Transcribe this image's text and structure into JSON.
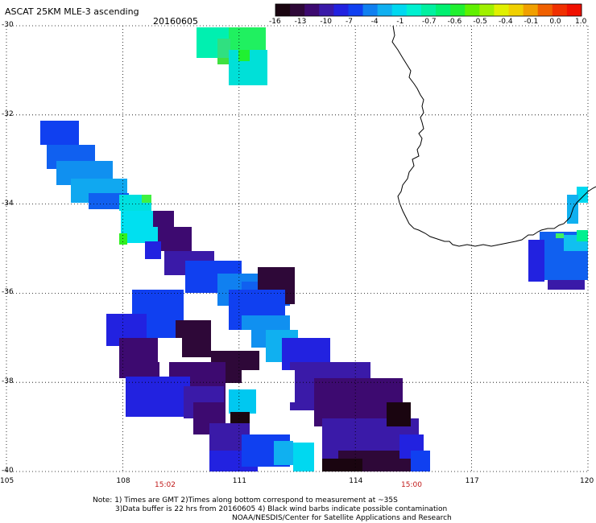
{
  "header": {
    "title": "ASCAT 25KM MLE-3 ascending",
    "date": "20160605"
  },
  "colorbar": {
    "labels": [
      "-16",
      "-13",
      "-10",
      "-7",
      "-4",
      "-1",
      "-0.7",
      "-0.6",
      "-0.5",
      "-0.4",
      "-0.1",
      "0.0",
      "1.0"
    ],
    "colors": [
      "#1a0510",
      "#2e0838",
      "#3d0a70",
      "#3a1aa8",
      "#2222e0",
      "#1040f0",
      "#1080f0",
      "#10b0f0",
      "#00d8f0",
      "#00f0d0",
      "#00f0a0",
      "#00f070",
      "#20f030",
      "#60f000",
      "#a0f000",
      "#e0f000",
      "#f0d000",
      "#f0a000",
      "#f06000",
      "#f03000",
      "#f01000"
    ]
  },
  "map": {
    "lat_labels": [
      "-30",
      "-32",
      "-34",
      "-36",
      "-38",
      "-40"
    ],
    "lon_labels": [
      "105",
      "108",
      "111",
      "114",
      "117",
      "120"
    ],
    "time_labels": [
      "15:02",
      "15:00"
    ],
    "lat_range": [
      -40,
      -30
    ],
    "lon_range": [
      105,
      120
    ],
    "coastline_color": "#000000",
    "grid": "dotted"
  },
  "footer": {
    "note_line1": "Note: 1) Times are GMT 2)Times along bottom correspond to measurement at ~35S",
    "note_line2": "3)Data buffer is 22 hrs from 20160605 4) Black wind barbs indicate possible contamination",
    "note_line3": "NOAA/NESDIS/Center for Satellite Applications and Research"
  }
}
